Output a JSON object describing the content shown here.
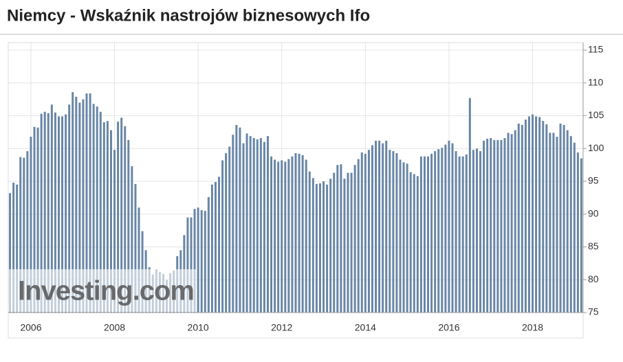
{
  "chart_data": {
    "type": "bar",
    "title": "Niemcy - Wskaźnik nastrojów biznesowych Ifo",
    "watermark": "Investing.com",
    "color": "#6886a6",
    "ylim": [
      75,
      115
    ],
    "yticks": [
      75,
      80,
      85,
      90,
      95,
      100,
      105,
      110,
      115
    ],
    "grid": true,
    "categories": [
      null,
      null,
      null,
      null,
      null,
      null,
      "2006",
      null,
      null,
      null,
      null,
      null,
      null,
      null,
      null,
      null,
      null,
      null,
      null,
      null,
      null,
      null,
      null,
      null,
      null,
      null,
      null,
      null,
      null,
      null,
      "2008",
      null,
      null,
      null,
      null,
      null,
      null,
      null,
      null,
      null,
      null,
      null,
      null,
      null,
      null,
      null,
      null,
      null,
      null,
      null,
      null,
      null,
      null,
      null,
      "2010",
      null,
      null,
      null,
      null,
      null,
      null,
      null,
      null,
      null,
      null,
      null,
      null,
      null,
      null,
      null,
      null,
      null,
      null,
      null,
      null,
      null,
      null,
      null,
      "2012",
      null,
      null,
      null,
      null,
      null,
      null,
      null,
      null,
      null,
      null,
      null,
      null,
      null,
      null,
      null,
      null,
      null,
      null,
      null,
      null,
      null,
      null,
      null,
      "2014",
      null,
      null,
      null,
      null,
      null,
      null,
      null,
      null,
      null,
      null,
      null,
      null,
      null,
      null,
      null,
      null,
      null,
      null,
      null,
      null,
      null,
      null,
      null,
      "2016",
      null,
      null,
      null,
      null,
      null,
      null,
      null,
      null,
      null,
      null,
      null,
      null,
      null,
      null,
      null,
      null,
      null,
      null,
      null,
      null,
      null,
      null,
      null,
      "2018",
      null,
      null,
      null,
      null,
      null,
      null,
      null,
      null,
      null,
      null,
      null,
      null,
      null,
      null
    ],
    "values": [
      93.2,
      94.8,
      94.5,
      98.7,
      98.6,
      99.6,
      101.8,
      103.3,
      103.2,
      105.3,
      105.6,
      105.4,
      106.7,
      105.5,
      104.9,
      104.9,
      105.2,
      106.7,
      108.6,
      107.9,
      107.0,
      107.5,
      108.4,
      108.4,
      106.8,
      106.4,
      105.6,
      104.0,
      104.2,
      102.8,
      99.8,
      104.1,
      104.7,
      103.4,
      101.3,
      97.3,
      94.6,
      91.0,
      87.4,
      84.5,
      81.9,
      80.8,
      81.6,
      81.2,
      80.9,
      80.0,
      81.0,
      81.4,
      83.6,
      84.5,
      86.8,
      89.5,
      89.5,
      90.8,
      91.0,
      90.6,
      90.5,
      92.6,
      94.5,
      94.9,
      95.7,
      98.2,
      99.3,
      100.3,
      102.1,
      103.6,
      103.2,
      100.8,
      102.3,
      101.9,
      101.6,
      101.4,
      101.6,
      101.0,
      101.9,
      98.8,
      98.3,
      98.0,
      98.2,
      98.0,
      98.4,
      98.8,
      99.3,
      99.2,
      99.0,
      98.3,
      96.5,
      95.5,
      94.6,
      94.7,
      95.0,
      94.5,
      95.4,
      96.3,
      97.5,
      97.6,
      95.4,
      96.3,
      96.3,
      97.5,
      98.4,
      99.4,
      99.2,
      99.8,
      100.5,
      101.2,
      101.2,
      100.8,
      101.2,
      99.8,
      99.6,
      99.3,
      98.3,
      97.9,
      97.7,
      96.4,
      96.1,
      95.8,
      98.8,
      98.8,
      98.8,
      99.2,
      99.6,
      99.9,
      100.1,
      100.6,
      101.2,
      100.8,
      99.6,
      98.8,
      98.8,
      99.1,
      107.7,
      99.8,
      100.0,
      99.6,
      101.2,
      101.5,
      101.6,
      101.3,
      101.3,
      101.3,
      101.6,
      102.4,
      102.2,
      102.8,
      103.8,
      103.6,
      104.4,
      104.9,
      105.2,
      104.9,
      104.8,
      104.2,
      103.7,
      102.4,
      102.4,
      101.8,
      103.8,
      103.6,
      102.8,
      101.9,
      100.9,
      99.4,
      98.5
    ]
  }
}
